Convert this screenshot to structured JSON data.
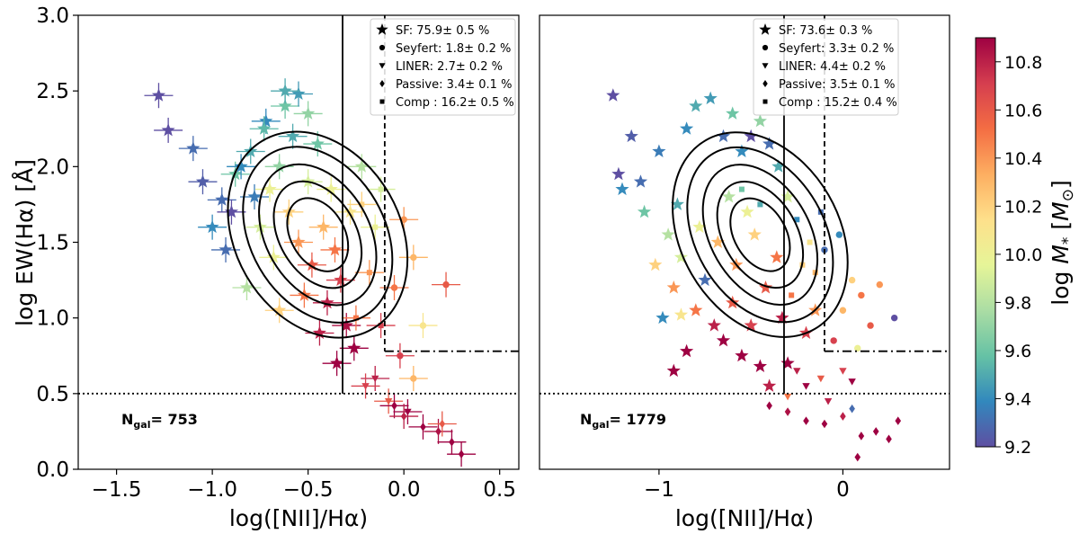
{
  "figure": {
    "colorbar": {
      "label_prefix": "log ",
      "label_main": "M",
      "label_sub": "*",
      "label_unit_open": " [",
      "label_unit": "M",
      "label_unit_sub": "⊙",
      "label_unit_close": "]",
      "ticks": [
        "9.2",
        "9.4",
        "9.6",
        "9.8",
        "10.0",
        "10.2",
        "10.4",
        "10.6",
        "10.8"
      ],
      "range": [
        9.2,
        10.9
      ],
      "colormap": "Spectral_r",
      "colors": [
        "#5e4fa2",
        "#3288bd",
        "#66c2a5",
        "#abdda4",
        "#e6f598",
        "#fee08b",
        "#fdae61",
        "#f46d43",
        "#d53e4f",
        "#9e0142"
      ]
    }
  },
  "chart_data": [
    {
      "type": "scatter",
      "ylabel": "log EW(Hα) [Å]",
      "xlabel": "log([NII]/Hα)",
      "xlim": [
        -1.7,
        0.6
      ],
      "ylim": [
        0.0,
        3.0
      ],
      "xticks": [
        "−1.5",
        "−1.0",
        "−0.5",
        "0.0",
        "0.5"
      ],
      "xtick_values": [
        -1.5,
        -1.0,
        -0.5,
        0.0,
        0.5
      ],
      "yticks": [
        "0.0",
        "0.5",
        "1.0",
        "1.5",
        "2.0",
        "2.5",
        "3.0"
      ],
      "ytick_values": [
        0.0,
        0.5,
        1.0,
        1.5,
        2.0,
        2.5,
        3.0
      ],
      "error_bars": true,
      "ngal_label": "N",
      "ngal_sub": "gal",
      "ngal_value": "= 753",
      "legend_position": "top-right",
      "legend": [
        {
          "marker": "star",
          "text": "SF: 75.9± 0.5 %"
        },
        {
          "marker": "circle",
          "text": "Seyfert: 1.8± 0.2 %"
        },
        {
          "marker": "triangle-down",
          "text": "LINER: 2.7± 0.2 %"
        },
        {
          "marker": "diamond",
          "text": "Passive: 3.4± 0.1 %"
        },
        {
          "marker": "square",
          "text": "Comp : 16.2± 0.5 %"
        }
      ],
      "lines": {
        "solid_vertical_x": -0.32,
        "dashed_vertical_x": -0.1,
        "dashdot_horizontal_y": 0.78,
        "dotted_horizontal_y": 0.5
      },
      "points": [
        {
          "x": -1.28,
          "y": 2.47,
          "m": "star",
          "c": 9.2
        },
        {
          "x": -1.23,
          "y": 2.24,
          "m": "star",
          "c": 9.2
        },
        {
          "x": -1.1,
          "y": 2.12,
          "m": "star",
          "c": 9.3
        },
        {
          "x": -1.05,
          "y": 1.9,
          "m": "star",
          "c": 9.25
        },
        {
          "x": -0.95,
          "y": 1.78,
          "m": "star",
          "c": 9.3
        },
        {
          "x": -1.0,
          "y": 1.6,
          "m": "star",
          "c": 9.4
        },
        {
          "x": -0.88,
          "y": 1.95,
          "m": "star",
          "c": 9.6
        },
        {
          "x": -0.8,
          "y": 2.1,
          "m": "star",
          "c": 9.5
        },
        {
          "x": -0.72,
          "y": 2.3,
          "m": "star",
          "c": 9.4
        },
        {
          "x": -0.62,
          "y": 2.4,
          "m": "star",
          "c": 9.6
        },
        {
          "x": -0.55,
          "y": 2.48,
          "m": "star",
          "c": 9.45
        },
        {
          "x": -0.82,
          "y": 1.2,
          "m": "star",
          "c": 9.8
        },
        {
          "x": -0.93,
          "y": 1.45,
          "m": "star",
          "c": 9.3
        },
        {
          "x": -0.75,
          "y": 1.6,
          "m": "star",
          "c": 9.9
        },
        {
          "x": -0.7,
          "y": 1.85,
          "m": "star",
          "c": 10.0
        },
        {
          "x": -0.65,
          "y": 2.0,
          "m": "star",
          "c": 9.7
        },
        {
          "x": -0.6,
          "y": 1.7,
          "m": "star",
          "c": 10.2
        },
        {
          "x": -0.55,
          "y": 1.5,
          "m": "star",
          "c": 10.4
        },
        {
          "x": -0.5,
          "y": 1.9,
          "m": "star",
          "c": 9.9
        },
        {
          "x": -0.48,
          "y": 1.35,
          "m": "star",
          "c": 10.6
        },
        {
          "x": -0.42,
          "y": 1.6,
          "m": "star",
          "c": 10.3
        },
        {
          "x": -0.4,
          "y": 1.1,
          "m": "star",
          "c": 10.8
        },
        {
          "x": -0.36,
          "y": 1.45,
          "m": "star",
          "c": 10.5
        },
        {
          "x": -0.33,
          "y": 1.25,
          "m": "star",
          "c": 10.7
        },
        {
          "x": -0.3,
          "y": 0.95,
          "m": "star",
          "c": 10.85
        },
        {
          "x": -0.28,
          "y": 1.7,
          "m": "star",
          "c": 10.1
        },
        {
          "x": -0.26,
          "y": 0.8,
          "m": "star",
          "c": 10.9
        },
        {
          "x": -0.22,
          "y": 2.0,
          "m": "star",
          "c": 9.8
        },
        {
          "x": -0.58,
          "y": 2.2,
          "m": "star",
          "c": 9.5
        },
        {
          "x": -0.68,
          "y": 1.4,
          "m": "star",
          "c": 10.0
        },
        {
          "x": -0.78,
          "y": 1.8,
          "m": "star",
          "c": 9.35
        },
        {
          "x": -0.85,
          "y": 2.0,
          "m": "star",
          "c": 9.4
        },
        {
          "x": -0.9,
          "y": 1.7,
          "m": "star",
          "c": 9.2
        },
        {
          "x": -0.45,
          "y": 2.15,
          "m": "star",
          "c": 9.6
        },
        {
          "x": -0.38,
          "y": 1.85,
          "m": "star",
          "c": 10.0
        },
        {
          "x": -0.52,
          "y": 1.15,
          "m": "star",
          "c": 10.5
        },
        {
          "x": -0.44,
          "y": 0.9,
          "m": "star",
          "c": 10.8
        },
        {
          "x": -0.35,
          "y": 0.7,
          "m": "star",
          "c": 10.9
        },
        {
          "x": -0.65,
          "y": 1.05,
          "m": "star",
          "c": 10.2
        },
        {
          "x": -0.62,
          "y": 2.5,
          "m": "star",
          "c": 9.5
        },
        {
          "x": -0.5,
          "y": 2.35,
          "m": "star",
          "c": 9.7
        },
        {
          "x": -0.73,
          "y": 2.25,
          "m": "star",
          "c": 9.55
        },
        {
          "x": 0.0,
          "y": 1.65,
          "m": "circle",
          "c": 10.4
        },
        {
          "x": 0.05,
          "y": 1.4,
          "m": "circle",
          "c": 10.3
        },
        {
          "x": 0.22,
          "y": 1.22,
          "m": "circle",
          "c": 10.6
        },
        {
          "x": -0.05,
          "y": 1.2,
          "m": "circle",
          "c": 10.5
        },
        {
          "x": 0.1,
          "y": 0.95,
          "m": "circle",
          "c": 10.1
        },
        {
          "x": -0.02,
          "y": 0.75,
          "m": "circle",
          "c": 10.7
        },
        {
          "x": 0.05,
          "y": 0.6,
          "m": "circle",
          "c": 10.3
        },
        {
          "x": -0.15,
          "y": 0.6,
          "m": "tri",
          "c": 10.8
        },
        {
          "x": -0.08,
          "y": 0.45,
          "m": "tri",
          "c": 10.6
        },
        {
          "x": 0.02,
          "y": 0.38,
          "m": "tri",
          "c": 10.9
        },
        {
          "x": -0.2,
          "y": 0.55,
          "m": "tri",
          "c": 10.7
        },
        {
          "x": -0.05,
          "y": 0.42,
          "m": "diamond",
          "c": 10.9
        },
        {
          "x": 0.0,
          "y": 0.35,
          "m": "diamond",
          "c": 10.8
        },
        {
          "x": 0.1,
          "y": 0.28,
          "m": "diamond",
          "c": 10.9
        },
        {
          "x": 0.18,
          "y": 0.25,
          "m": "diamond",
          "c": 10.85
        },
        {
          "x": 0.25,
          "y": 0.18,
          "m": "diamond",
          "c": 10.9
        },
        {
          "x": 0.3,
          "y": 0.1,
          "m": "diamond",
          "c": 10.9
        },
        {
          "x": 0.2,
          "y": 0.3,
          "m": "diamond",
          "c": 10.6
        },
        {
          "x": -0.25,
          "y": 1.0,
          "m": "square",
          "c": 10.5
        },
        {
          "x": -0.18,
          "y": 1.3,
          "m": "square",
          "c": 10.4
        },
        {
          "x": -0.12,
          "y": 0.95,
          "m": "square",
          "c": 10.7
        },
        {
          "x": -0.15,
          "y": 1.6,
          "m": "square",
          "c": 10.0
        },
        {
          "x": -0.22,
          "y": 1.75,
          "m": "square",
          "c": 10.2
        },
        {
          "x": -0.12,
          "y": 1.85,
          "m": "square",
          "c": 9.9
        }
      ]
    },
    {
      "type": "scatter",
      "xlabel": "log([NII]/Hα)",
      "xlim": [
        -1.65,
        0.58
      ],
      "ylim": [
        0.0,
        3.0
      ],
      "xticks": [
        "−1",
        "0"
      ],
      "xtick_values": [
        -1.0,
        0.0
      ],
      "error_bars": false,
      "ngal_label": "N",
      "ngal_sub": "gal",
      "ngal_value": "= 1779",
      "legend_position": "top-right",
      "legend": [
        {
          "marker": "star",
          "text": "SF: 73.6± 0.3 %"
        },
        {
          "marker": "circle",
          "text": "Seyfert: 3.3± 0.2 %"
        },
        {
          "marker": "triangle-down",
          "text": "LINER: 4.4± 0.2 %"
        },
        {
          "marker": "diamond",
          "text": "Passive: 3.5± 0.1 %"
        },
        {
          "marker": "square",
          "text": "Comp : 15.2± 0.4 %"
        }
      ],
      "lines": {
        "solid_vertical_x": -0.32,
        "dashed_vertical_x": -0.1,
        "dashdot_horizontal_y": 0.78,
        "dotted_horizontal_y": 0.5
      },
      "points": [
        {
          "x": -1.25,
          "y": 2.47,
          "m": "star",
          "c": 9.2
        },
        {
          "x": -1.15,
          "y": 2.2,
          "m": "star",
          "c": 9.25
        },
        {
          "x": -1.22,
          "y": 1.95,
          "m": "star",
          "c": 9.2
        },
        {
          "x": -1.2,
          "y": 1.85,
          "m": "star",
          "c": 9.4
        },
        {
          "x": -1.1,
          "y": 1.9,
          "m": "star",
          "c": 9.3
        },
        {
          "x": -1.08,
          "y": 1.7,
          "m": "star",
          "c": 9.6
        },
        {
          "x": -1.0,
          "y": 2.1,
          "m": "star",
          "c": 9.35
        },
        {
          "x": -0.95,
          "y": 1.55,
          "m": "star",
          "c": 9.8
        },
        {
          "x": -0.9,
          "y": 1.75,
          "m": "star",
          "c": 9.5
        },
        {
          "x": -0.85,
          "y": 2.25,
          "m": "star",
          "c": 9.4
        },
        {
          "x": -0.8,
          "y": 2.4,
          "m": "star",
          "c": 9.5
        },
        {
          "x": -0.72,
          "y": 2.45,
          "m": "star",
          "c": 9.45
        },
        {
          "x": -0.65,
          "y": 2.2,
          "m": "star",
          "c": 9.3
        },
        {
          "x": -0.6,
          "y": 2.35,
          "m": "star",
          "c": 9.6
        },
        {
          "x": -0.55,
          "y": 2.1,
          "m": "star",
          "c": 9.4
        },
        {
          "x": -0.5,
          "y": 2.2,
          "m": "star",
          "c": 9.2
        },
        {
          "x": -0.45,
          "y": 2.3,
          "m": "star",
          "c": 9.7
        },
        {
          "x": -0.4,
          "y": 2.15,
          "m": "star",
          "c": 9.3
        },
        {
          "x": -0.35,
          "y": 2.0,
          "m": "star",
          "c": 9.5
        },
        {
          "x": -0.3,
          "y": 1.8,
          "m": "star",
          "c": 9.9
        },
        {
          "x": -1.02,
          "y": 1.35,
          "m": "star",
          "c": 10.2
        },
        {
          "x": -0.92,
          "y": 1.2,
          "m": "star",
          "c": 10.4
        },
        {
          "x": -0.88,
          "y": 1.4,
          "m": "star",
          "c": 9.9
        },
        {
          "x": -0.8,
          "y": 1.05,
          "m": "star",
          "c": 10.5
        },
        {
          "x": -0.75,
          "y": 1.25,
          "m": "star",
          "c": 9.3
        },
        {
          "x": -0.7,
          "y": 0.95,
          "m": "star",
          "c": 10.8
        },
        {
          "x": -0.65,
          "y": 0.85,
          "m": "star",
          "c": 10.9
        },
        {
          "x": -0.6,
          "y": 1.1,
          "m": "star",
          "c": 10.6
        },
        {
          "x": -0.55,
          "y": 0.75,
          "m": "star",
          "c": 10.9
        },
        {
          "x": -0.5,
          "y": 0.95,
          "m": "star",
          "c": 10.7
        },
        {
          "x": -0.45,
          "y": 0.68,
          "m": "star",
          "c": 10.9
        },
        {
          "x": -0.4,
          "y": 0.55,
          "m": "star",
          "c": 10.8
        },
        {
          "x": -0.92,
          "y": 0.65,
          "m": "star",
          "c": 10.9
        },
        {
          "x": -0.85,
          "y": 0.78,
          "m": "star",
          "c": 10.9
        },
        {
          "x": -0.78,
          "y": 1.6,
          "m": "star",
          "c": 10.0
        },
        {
          "x": -0.68,
          "y": 1.5,
          "m": "star",
          "c": 10.3
        },
        {
          "x": -0.58,
          "y": 1.35,
          "m": "star",
          "c": 10.4
        },
        {
          "x": -0.48,
          "y": 1.55,
          "m": "star",
          "c": 10.2
        },
        {
          "x": -0.42,
          "y": 1.2,
          "m": "star",
          "c": 10.6
        },
        {
          "x": -0.36,
          "y": 1.4,
          "m": "star",
          "c": 10.5
        },
        {
          "x": -0.33,
          "y": 1.0,
          "m": "star",
          "c": 10.8
        },
        {
          "x": -0.62,
          "y": 1.8,
          "m": "star",
          "c": 9.8
        },
        {
          "x": -0.52,
          "y": 1.7,
          "m": "star",
          "c": 10.0
        },
        {
          "x": -0.98,
          "y": 1.0,
          "m": "star",
          "c": 9.4
        },
        {
          "x": -0.88,
          "y": 1.02,
          "m": "star",
          "c": 10.1
        },
        {
          "x": -0.3,
          "y": 0.7,
          "m": "star",
          "c": 10.9
        },
        {
          "x": -0.2,
          "y": 0.9,
          "m": "star",
          "c": 10.7
        },
        {
          "x": -0.15,
          "y": 1.05,
          "m": "star",
          "c": 10.4
        },
        {
          "x": -0.1,
          "y": 1.45,
          "m": "circle",
          "c": 9.3
        },
        {
          "x": -0.02,
          "y": 1.55,
          "m": "circle",
          "c": 9.4
        },
        {
          "x": 0.05,
          "y": 1.25,
          "m": "circle",
          "c": 10.2
        },
        {
          "x": 0.1,
          "y": 1.15,
          "m": "circle",
          "c": 10.5
        },
        {
          "x": 0.2,
          "y": 1.22,
          "m": "circle",
          "c": 10.4
        },
        {
          "x": 0.28,
          "y": 1.0,
          "m": "circle",
          "c": 9.2
        },
        {
          "x": 0.15,
          "y": 0.95,
          "m": "circle",
          "c": 10.6
        },
        {
          "x": 0.0,
          "y": 1.05,
          "m": "circle",
          "c": 10.3
        },
        {
          "x": -0.05,
          "y": 0.85,
          "m": "circle",
          "c": 10.7
        },
        {
          "x": 0.08,
          "y": 0.8,
          "m": "circle",
          "c": 10.0
        },
        {
          "x": -0.25,
          "y": 0.65,
          "m": "tri",
          "c": 10.8
        },
        {
          "x": -0.2,
          "y": 0.55,
          "m": "tri",
          "c": 10.9
        },
        {
          "x": -0.12,
          "y": 0.6,
          "m": "tri",
          "c": 10.6
        },
        {
          "x": -0.08,
          "y": 0.45,
          "m": "tri",
          "c": 10.8
        },
        {
          "x": 0.0,
          "y": 0.65,
          "m": "tri",
          "c": 10.7
        },
        {
          "x": 0.05,
          "y": 0.58,
          "m": "tri",
          "c": 10.9
        },
        {
          "x": -0.3,
          "y": 0.48,
          "m": "tri",
          "c": 10.5
        },
        {
          "x": -0.4,
          "y": 0.42,
          "m": "diamond",
          "c": 10.9
        },
        {
          "x": -0.3,
          "y": 0.38,
          "m": "diamond",
          "c": 10.85
        },
        {
          "x": -0.2,
          "y": 0.32,
          "m": "diamond",
          "c": 10.9
        },
        {
          "x": -0.1,
          "y": 0.3,
          "m": "diamond",
          "c": 10.9
        },
        {
          "x": 0.0,
          "y": 0.35,
          "m": "diamond",
          "c": 10.8
        },
        {
          "x": 0.1,
          "y": 0.22,
          "m": "diamond",
          "c": 10.9
        },
        {
          "x": 0.18,
          "y": 0.25,
          "m": "diamond",
          "c": 10.9
        },
        {
          "x": 0.25,
          "y": 0.2,
          "m": "diamond",
          "c": 10.9
        },
        {
          "x": 0.3,
          "y": 0.32,
          "m": "diamond",
          "c": 10.9
        },
        {
          "x": 0.08,
          "y": 0.08,
          "m": "diamond",
          "c": 10.9
        },
        {
          "x": 0.05,
          "y": 0.4,
          "m": "diamond",
          "c": 9.3
        },
        {
          "x": -0.55,
          "y": 1.85,
          "m": "square",
          "c": 9.6
        },
        {
          "x": -0.45,
          "y": 1.75,
          "m": "square",
          "c": 9.5
        },
        {
          "x": -0.25,
          "y": 1.65,
          "m": "square",
          "c": 9.4
        },
        {
          "x": -0.18,
          "y": 1.5,
          "m": "square",
          "c": 10.1
        },
        {
          "x": -0.15,
          "y": 1.3,
          "m": "square",
          "c": 10.3
        },
        {
          "x": -0.28,
          "y": 1.15,
          "m": "square",
          "c": 10.5
        },
        {
          "x": -0.22,
          "y": 1.35,
          "m": "square",
          "c": 10.2
        },
        {
          "x": -0.12,
          "y": 1.7,
          "m": "square",
          "c": 9.3
        }
      ]
    }
  ]
}
